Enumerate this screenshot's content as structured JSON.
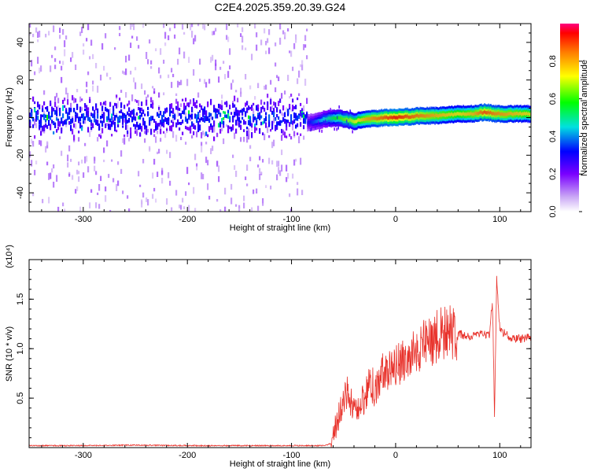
{
  "figure": {
    "title": "C2E4.2025.359.20.39.G24"
  },
  "chart_data": [
    {
      "type": "heatmap",
      "xlabel": "Height of straight line (km)",
      "ylabel": "Frequency (Hz)",
      "xlim": [
        -352,
        130
      ],
      "ylim": [
        -50,
        50
      ],
      "xticks": [
        -300,
        -200,
        -100,
        0,
        100
      ],
      "yticks": [
        -40,
        -20,
        0,
        20,
        40
      ],
      "colorbar": {
        "label": "Normalized spectral amplitude",
        "range": [
          0,
          1
        ],
        "ticks": [
          "0.0",
          "0.2",
          "0.4",
          "0.6",
          "0.8"
        ]
      },
      "ridge": {
        "description_free": true,
        "x": [
          -85,
          -70,
          -55,
          -40,
          -30,
          -20,
          -10,
          0,
          10,
          25,
          40,
          60,
          75,
          85,
          95,
          110,
          130
        ],
        "frequency": [
          -3,
          -1,
          0,
          -2,
          -1,
          -0.5,
          0,
          0,
          0.5,
          1,
          1,
          2,
          2,
          3,
          2,
          2,
          2
        ],
        "amplitude": [
          0.3,
          0.45,
          0.6,
          0.7,
          0.8,
          0.85,
          0.9,
          0.95,
          0.9,
          0.85,
          0.8,
          0.75,
          0.8,
          0.9,
          0.85,
          0.8,
          0.75
        ]
      },
      "noise_region": {
        "x_range": [
          -352,
          -85
        ],
        "core_frequency_halfwidth": 12,
        "outer_frequency_halfwidth": 50
      }
    },
    {
      "type": "line",
      "xlabel": "Height of straight line (km)",
      "ylabel": "SNR (10 * v/v)",
      "yscale_label": "(x10⁴)",
      "xlim": [
        -352,
        130
      ],
      "ylim": [
        0,
        1.9
      ],
      "xticks": [
        -300,
        -200,
        -100,
        0,
        100
      ],
      "yticks": [
        "0.5",
        "1.0",
        "1.5"
      ],
      "series": [
        {
          "color": "#e8312a",
          "x": [
            -352,
            -300,
            -250,
            -200,
            -150,
            -100,
            -70,
            -62,
            -58,
            -55,
            -50,
            -46,
            -40,
            -35,
            -30,
            -25,
            -20,
            -15,
            -10,
            -5,
            0,
            10,
            20,
            30,
            40,
            50,
            60,
            70,
            80,
            90,
            93,
            95,
            97,
            100,
            105,
            110,
            120,
            130
          ],
          "y": [
            0.02,
            0.02,
            0.025,
            0.02,
            0.02,
            0.02,
            0.02,
            0.04,
            0.2,
            0.3,
            0.45,
            0.55,
            0.35,
            0.45,
            0.5,
            0.65,
            0.6,
            0.7,
            0.8,
            0.75,
            0.85,
            0.9,
            0.98,
            1.05,
            1.12,
            1.18,
            1.15,
            1.13,
            1.15,
            1.15,
            1.5,
            0.3,
            1.7,
            1.2,
            1.15,
            1.12,
            1.1,
            1.12
          ]
        }
      ]
    }
  ],
  "colors": {
    "trace": "#e8312a",
    "axes": "#000000"
  }
}
